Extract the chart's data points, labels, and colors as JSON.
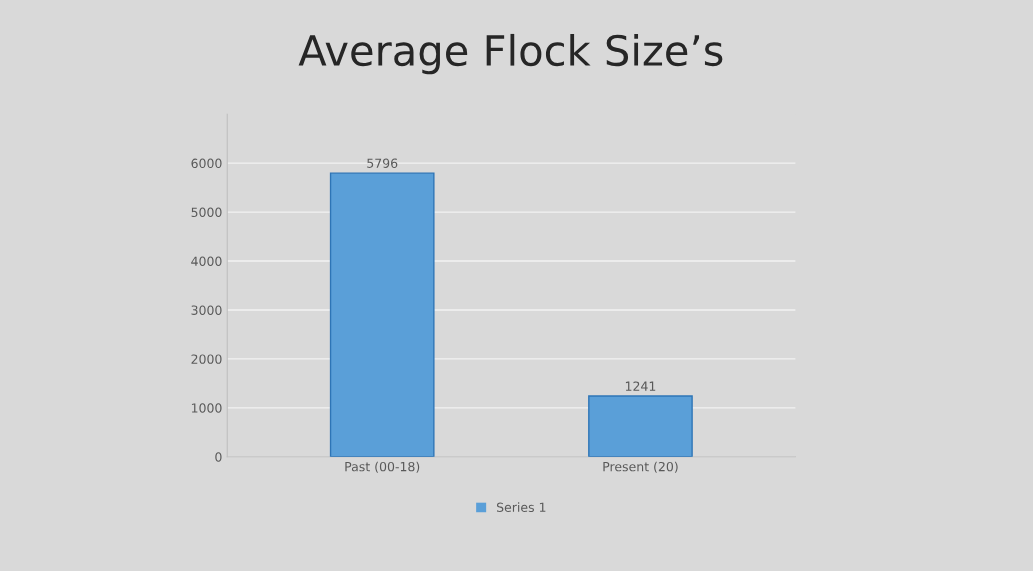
{
  "chart_data": {
    "type": "bar",
    "title": "Average Flock Size’s",
    "categories": [
      "Past (00-18)",
      "Present (20)"
    ],
    "series": [
      {
        "name": "Series 1",
        "color": "#5a9fd8",
        "values": [
          5796,
          1241
        ]
      }
    ],
    "ylim": [
      0,
      7000
    ],
    "yticks": [
      0,
      1000,
      2000,
      3000,
      4000,
      5000,
      6000
    ],
    "grid": "y",
    "legend": "bottom",
    "data_labels": true
  }
}
